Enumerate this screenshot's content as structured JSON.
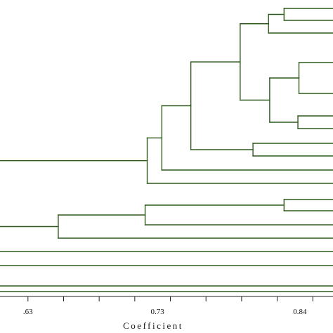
{
  "chart_data": {
    "type": "dendrogram",
    "title": "",
    "xlabel": "Coefficient",
    "ylabel": "",
    "xlim": [
      0.6084,
      0.8656
    ],
    "tick_labels": [
      ".63",
      "0.73",
      "0.84"
    ],
    "ticks": [
      0.63,
      0.6575,
      0.685,
      0.7125,
      0.74,
      0.7675,
      0.795,
      0.8225,
      0.85
    ],
    "labeled_ticks": [
      0.63,
      0.73,
      0.84
    ],
    "grid": false,
    "branch_color": "#2f5a1e",
    "leaves": 19,
    "merges": [
      {
        "id": "m1",
        "a": 0,
        "b": 1,
        "coef": 0.8278
      },
      {
        "id": "m2",
        "a": "m1",
        "b": 2,
        "coef": 0.8158
      },
      {
        "id": "m3",
        "a": 3,
        "b": 4,
        "coef": 0.8393
      },
      {
        "id": "m4",
        "a": 5,
        "b": 6,
        "coef": 0.8385
      },
      {
        "id": "m5",
        "a": "m3",
        "b": "m4",
        "coef": 0.8167
      },
      {
        "id": "m6",
        "a": "m2",
        "b": "m5",
        "coef": 0.7939
      },
      {
        "id": "m7",
        "a": 7,
        "b": 8,
        "coef": 0.8038
      },
      {
        "id": "m8",
        "a": "m6",
        "b": "m7",
        "coef": 0.7558
      },
      {
        "id": "m9",
        "a": "m8",
        "b": 9,
        "coef": 0.7334
      },
      {
        "id": "m10",
        "a": "m9",
        "b": 10,
        "coef": 0.7221
      },
      {
        "id": "m11",
        "a": 11,
        "b": 12,
        "coef": 0.8278
      },
      {
        "id": "m12",
        "a": "m11",
        "b": 13,
        "coef": 0.7205
      },
      {
        "id": "m13",
        "a": "m12",
        "b": 14,
        "coef": 0.6534
      }
    ],
    "root_branches": [
      "m10",
      "m13",
      15,
      16,
      17,
      18
    ]
  }
}
